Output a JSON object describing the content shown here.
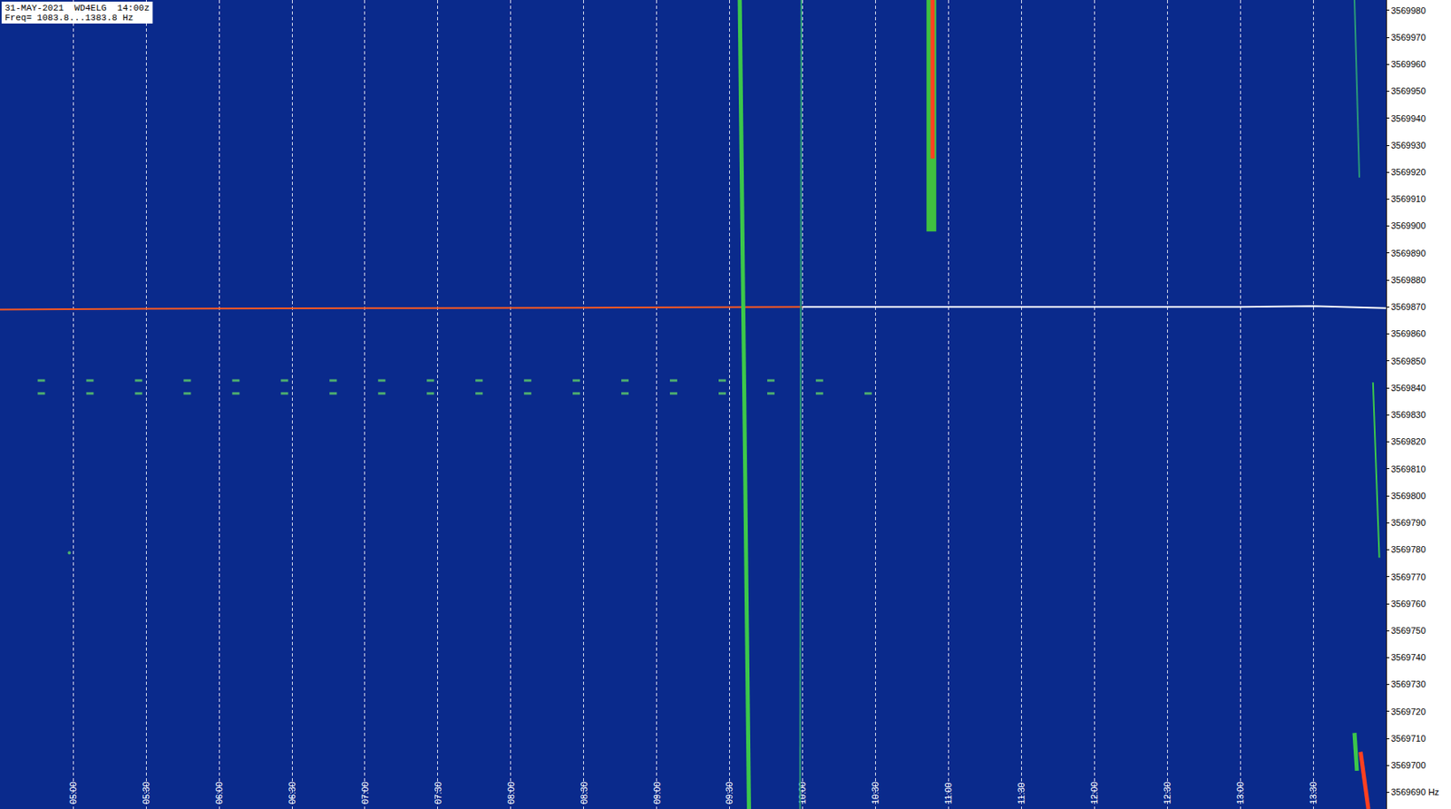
{
  "chart_data": {
    "type": "spectrogram",
    "title": "31-MAY-2021  WD4ELG  14:00z",
    "subtitle": "Freq= 1083.8...1383.8 Hz",
    "xlim": [
      270,
      840
    ],
    "xticks": [
      {
        "value": 300,
        "label": "05:00"
      },
      {
        "value": 330,
        "label": "05:30"
      },
      {
        "value": 360,
        "label": "06:00"
      },
      {
        "value": 390,
        "label": "06:30"
      },
      {
        "value": 420,
        "label": "07:00"
      },
      {
        "value": 450,
        "label": "07:30"
      },
      {
        "value": 480,
        "label": "08:00"
      },
      {
        "value": 510,
        "label": "08:30"
      },
      {
        "value": 540,
        "label": "09:00"
      },
      {
        "value": 570,
        "label": "09:30"
      },
      {
        "value": 600,
        "label": "10:00"
      },
      {
        "value": 630,
        "label": "10:30"
      },
      {
        "value": 660,
        "label": "11:00"
      },
      {
        "value": 690,
        "label": "11:30"
      },
      {
        "value": 720,
        "label": "12:00"
      },
      {
        "value": 750,
        "label": "12:30"
      },
      {
        "value": 780,
        "label": "13:00"
      },
      {
        "value": 810,
        "label": "13:30"
      }
    ],
    "ylim": [
      3569683.8,
      3569983.8
    ],
    "yticks": [
      {
        "value": 3569690,
        "label": "3569690 Hz"
      },
      3569700,
      3569710,
      3569720,
      3569730,
      3569740,
      3569750,
      3569760,
      3569770,
      3569780,
      3569790,
      3569800,
      3569810,
      3569820,
      3569830,
      3569840,
      3569850,
      3569860,
      3569870,
      3569880,
      3569890,
      3569900,
      3569910,
      3569920,
      3569930,
      3569940,
      3569950,
      3569960,
      3569970,
      3569980
    ],
    "grid": "x",
    "series": [
      {
        "type": "line",
        "color": "#ff5a1e",
        "line_style": "thin",
        "x": [
          270,
          330,
          420,
          510,
          600
        ],
        "values": [
          3569869,
          3569869.3,
          3569869.5,
          3569869.7,
          3569870
        ]
      },
      {
        "type": "line",
        "color": "#ffffff",
        "line_style": "thin",
        "x": [
          600,
          690,
          780,
          810,
          840
        ],
        "values": [
          3569870,
          3569870,
          3569870,
          3569870.3,
          3569869.5
        ]
      },
      {
        "type": "line",
        "color": "#3cc84a",
        "line_style": "medium",
        "x": [
          574.2,
          578
        ],
        "values": [
          3569983.8,
          3569683.8
        ]
      },
      {
        "type": "line",
        "color": "#2a9a78",
        "line_style": "thin",
        "x": [
          599.5,
          599
        ],
        "values": [
          3569983.8,
          3569683.8
        ]
      },
      {
        "type": "line",
        "color": "#40c040",
        "line_style": "thick",
        "x": [
          653,
          653
        ],
        "values": [
          3569983.8,
          3569898
        ]
      },
      {
        "type": "line",
        "color": "#ff4020",
        "line_style": "medium",
        "x": [
          653.5,
          653.5
        ],
        "values": [
          3569983.8,
          3569925
        ]
      },
      {
        "type": "line",
        "color": "#3cc84a",
        "line_style": "thin",
        "x": [
          834.6,
          837.2
        ],
        "values": [
          3569842,
          3569777
        ]
      },
      {
        "type": "line",
        "color": "#2a9a78",
        "line_style": "thin",
        "x": [
          827,
          829
        ],
        "values": [
          3569983.8,
          3569918
        ]
      },
      {
        "type": "line",
        "color": "#3cc84a",
        "line_style": "medium",
        "x": [
          827,
          828
        ],
        "values": [
          3569712,
          3569698
        ]
      },
      {
        "type": "line",
        "color": "#ff4020",
        "line_style": "medium",
        "x": [
          829.5,
          832.7
        ],
        "values": [
          3569705,
          3569683.8
        ]
      },
      {
        "type": "scatter",
        "color": "#5fd068",
        "marker": "dash",
        "x": [
          287,
          307,
          327,
          347,
          367,
          387,
          407,
          427,
          447,
          467,
          487,
          507,
          527,
          547,
          567,
          587,
          607
        ],
        "values": [
          3569842.7,
          3569842.7,
          3569842.7,
          3569842.7,
          3569842.7,
          3569842.7,
          3569842.7,
          3569842.7,
          3569842.7,
          3569842.7,
          3569842.7,
          3569842.7,
          3569842.7,
          3569842.7,
          3569842.7,
          3569842.7,
          3569842.7
        ]
      },
      {
        "type": "scatter",
        "color": "#5fd068",
        "marker": "dash",
        "x": [
          287,
          307,
          327,
          347,
          367,
          387,
          407,
          427,
          447,
          467,
          487,
          507,
          527,
          547,
          567,
          587,
          607,
          627
        ],
        "values": [
          3569837.9,
          3569837.9,
          3569837.9,
          3569837.9,
          3569837.9,
          3569837.9,
          3569837.9,
          3569837.9,
          3569837.9,
          3569837.9,
          3569837.9,
          3569837.9,
          3569837.9,
          3569837.9,
          3569837.9,
          3569837.9,
          3569837.9,
          3569837.9
        ]
      },
      {
        "type": "scatter",
        "color": "#5fd068",
        "marker": "dot",
        "x": [
          298.5
        ],
        "values": [
          3569778.8
        ]
      }
    ]
  }
}
